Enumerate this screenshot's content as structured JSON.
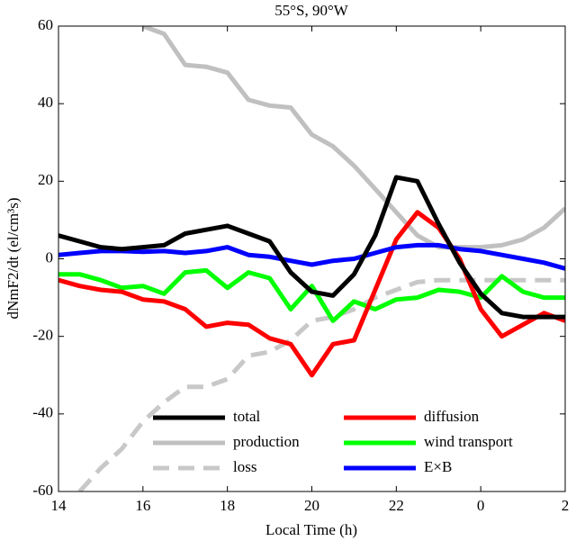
{
  "chart_data": {
    "type": "line",
    "title": "55°S, 90°W",
    "x_label": "Local Time (h)",
    "y_label": "dNmF2/dt (el/cm³s)",
    "x": [
      14,
      14.5,
      15,
      15.5,
      16,
      16.5,
      17,
      17.5,
      18,
      18.5,
      19,
      19.5,
      20,
      20.5,
      21,
      21.5,
      22,
      22.5,
      23,
      23.5,
      24,
      24.5,
      25,
      25.5,
      26
    ],
    "xlim": [
      14,
      26
    ],
    "xticks": [
      14,
      16,
      18,
      20,
      22,
      {
        "value": 24,
        "label": "0"
      },
      {
        "value": 26,
        "label": "2"
      }
    ],
    "ylim": [
      -60,
      60
    ],
    "yticks": [
      -60,
      -40,
      -20,
      0,
      20,
      40,
      60
    ],
    "series": [
      {
        "name": "total",
        "color": "#000000",
        "linestyle": "solid",
        "values": [
          6,
          4.5,
          3,
          2.5,
          3,
          3.5,
          6.5,
          7.5,
          8.5,
          6.5,
          4.5,
          -3.5,
          -8.5,
          -9.5,
          -4,
          6,
          21,
          20,
          9,
          -1,
          -9,
          -14,
          -15,
          -15,
          -15
        ]
      },
      {
        "name": "production",
        "color": "#c0c0c0",
        "linestyle": "solid",
        "values": [
          null,
          null,
          null,
          null,
          60,
          58,
          50,
          49.5,
          48,
          41,
          39.5,
          39,
          32,
          29,
          24,
          18,
          12,
          6,
          3,
          3,
          3,
          3.5,
          5,
          8,
          13
        ]
      },
      {
        "name": "loss",
        "color": "#c8c8c8",
        "linestyle": "dashed",
        "values": [
          null,
          -60,
          -54,
          -49,
          -42,
          -37,
          -33,
          -33,
          -31,
          -25,
          -24,
          -21,
          -16,
          -15,
          -13,
          -10,
          -8,
          -6,
          -5.5,
          -5.5,
          -5.5,
          -5.5,
          -5.5,
          -5.5,
          -5.5
        ]
      },
      {
        "name": "diffusion",
        "color": "#ff0000",
        "linestyle": "solid",
        "values": [
          -5.5,
          -7,
          -8,
          -8.5,
          -10.5,
          -11,
          -13,
          -17.5,
          -16.5,
          -17,
          -20.5,
          -22,
          -30,
          -22,
          -21,
          -8,
          5,
          12,
          8,
          0,
          -13,
          -20,
          -17,
          -14,
          -16
        ]
      },
      {
        "name": "wind transport",
        "color": "#00ff00",
        "linestyle": "solid",
        "values": [
          -4,
          -4,
          -5.5,
          -7.5,
          -7,
          -9,
          -3.5,
          -3,
          -7.5,
          -3.5,
          -5,
          -13,
          -7,
          -16,
          -11,
          -13,
          -10.5,
          -10,
          -8,
          -8.5,
          -10,
          -4.5,
          -8.5,
          -10,
          -10
        ]
      },
      {
        "name": "E×B",
        "color": "#0000ff",
        "linestyle": "solid",
        "values": [
          1,
          1.5,
          2,
          2,
          1.8,
          2,
          1.5,
          2,
          3,
          1,
          0.5,
          -0.5,
          -1.5,
          -0.5,
          0,
          1.5,
          3,
          3.5,
          3.5,
          2.5,
          2,
          1,
          0,
          -1,
          -2.5
        ]
      }
    ]
  }
}
